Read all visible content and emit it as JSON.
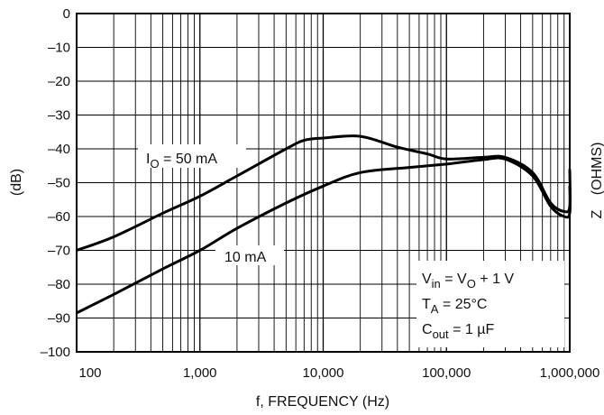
{
  "chart_data": {
    "type": "line",
    "x_scale": "log",
    "xlim": [
      100,
      1000000
    ],
    "ylim": [
      -100,
      0
    ],
    "grid": true,
    "xlabel": "f, FREQUENCY (Hz)",
    "ylabel": "(dB)",
    "right_axis_label_partial": "Z",
    "right_axis_label_partial_2": "(OHMS)",
    "x_ticks": [
      100,
      1000,
      10000,
      100000,
      1000000
    ],
    "x_tick_labels": [
      "100",
      "1,000",
      "10,000",
      "100,000",
      "1,000,000"
    ],
    "y_ticks": [
      0,
      -10,
      -20,
      -30,
      -40,
      -50,
      -60,
      -70,
      -80,
      -90,
      -100
    ],
    "y_tick_labels": [
      "0",
      "–10",
      "–20",
      "–30",
      "–40",
      "–50",
      "–60",
      "–70",
      "–80",
      "–90",
      "–100"
    ],
    "series": [
      {
        "name": "IO = 50 mA",
        "points": [
          [
            100,
            -70
          ],
          [
            200,
            -66
          ],
          [
            500,
            -59
          ],
          [
            1000,
            -54
          ],
          [
            2000,
            -48
          ],
          [
            5000,
            -40
          ],
          [
            7000,
            -37.5
          ],
          [
            10000,
            -36.8
          ],
          [
            20000,
            -36.3
          ],
          [
            40000,
            -39.5
          ],
          [
            70000,
            -41.5
          ],
          [
            100000,
            -43
          ],
          [
            200000,
            -42.5
          ],
          [
            300000,
            -42.5
          ],
          [
            500000,
            -47
          ],
          [
            700000,
            -56
          ],
          [
            900000,
            -58.5
          ],
          [
            1000000,
            -57
          ],
          [
            1300000,
            -46
          ]
        ]
      },
      {
        "name": "10 mA",
        "points": [
          [
            100,
            -88.5
          ],
          [
            200,
            -83
          ],
          [
            500,
            -75.5
          ],
          [
            1000,
            -70
          ],
          [
            2000,
            -63.5
          ],
          [
            5000,
            -56
          ],
          [
            10000,
            -51
          ],
          [
            20000,
            -47
          ],
          [
            50000,
            -45.5
          ],
          [
            100000,
            -44.5
          ],
          [
            200000,
            -43.2
          ],
          [
            300000,
            -43
          ],
          [
            500000,
            -48
          ],
          [
            700000,
            -57
          ],
          [
            900000,
            -60
          ],
          [
            1000000,
            -59
          ],
          [
            1300000,
            -51
          ]
        ]
      }
    ],
    "annotations": {
      "io_label": {
        "main": "I",
        "sub": "O",
        "rest": " = 50 mA"
      },
      "ma10_label": "10 mA",
      "vin": {
        "a": "V",
        "a_sub": "in",
        "b": " = V",
        "b_sub": "O",
        "c": " + 1 V"
      },
      "ta": {
        "a": "T",
        "a_sub": "A",
        "b": " = 25°C"
      },
      "cout": {
        "a": "C",
        "a_sub": "out",
        "b": " = 1 µF"
      }
    }
  }
}
